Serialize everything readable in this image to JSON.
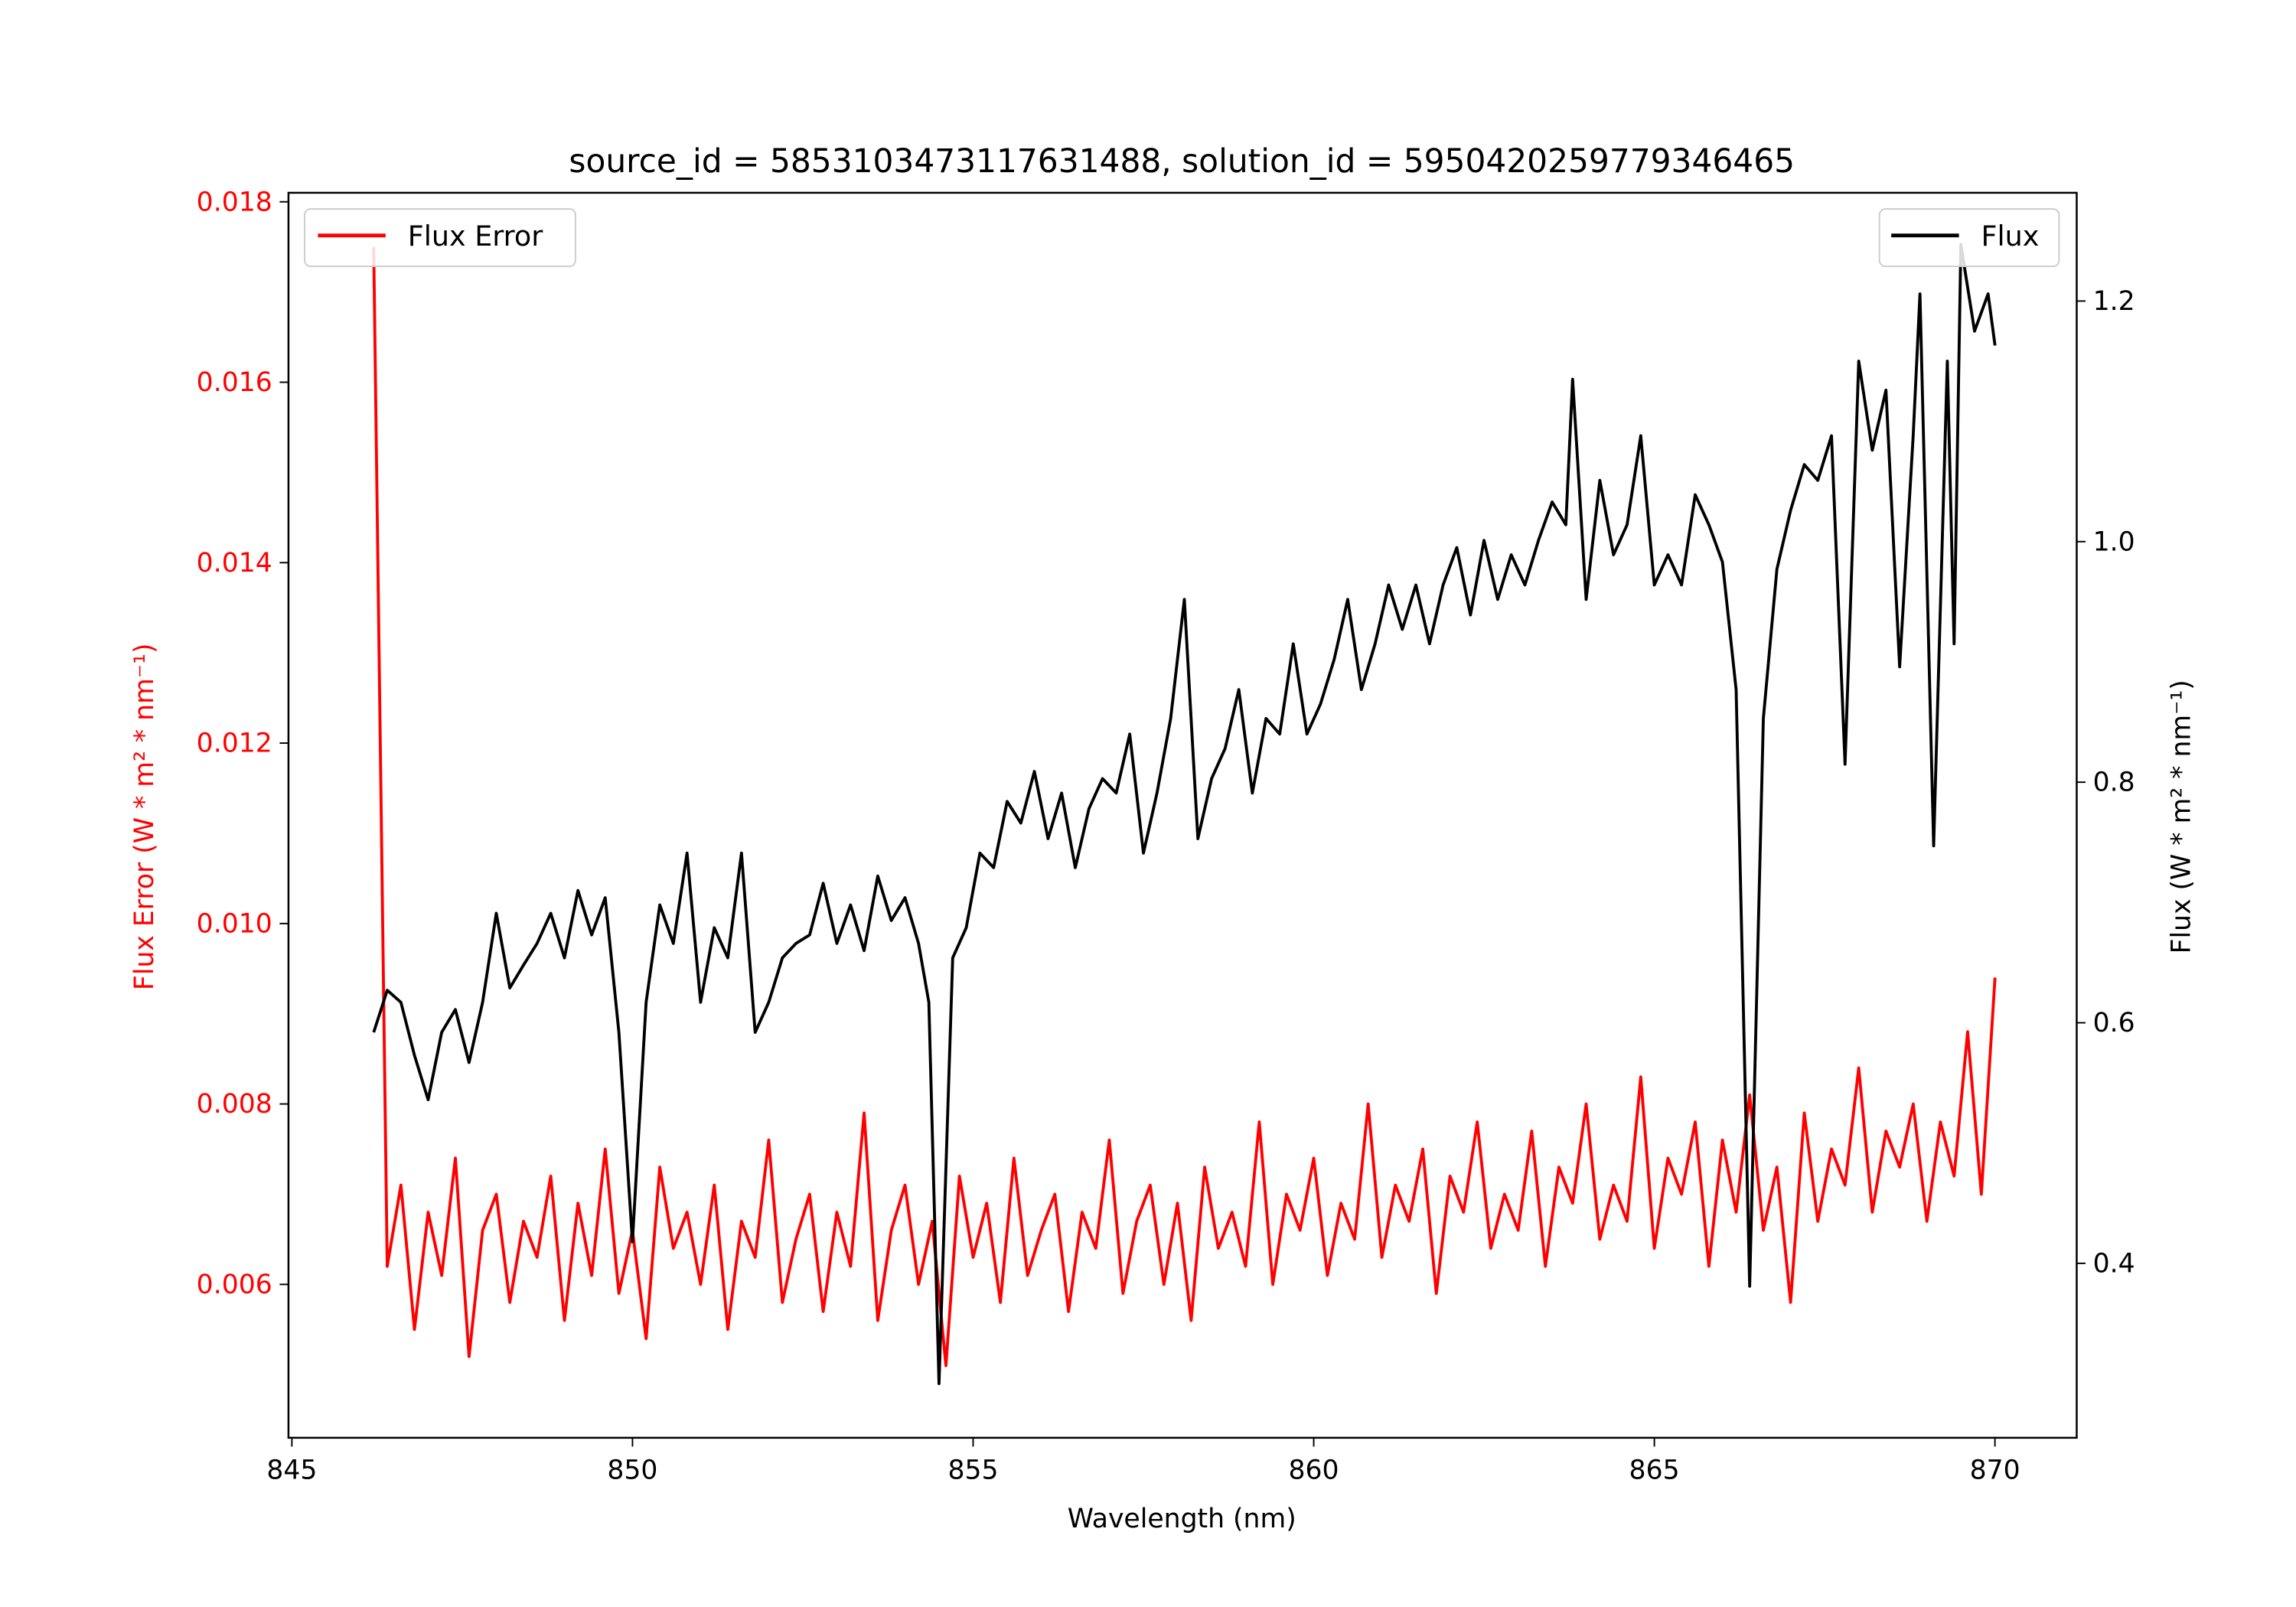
{
  "chart_data": {
    "type": "line",
    "title": "source_id = 5853103473117631488, solution_id = 5950420259779346465",
    "xlabel": "Wavelength (nm)",
    "ylabel_left": "Flux Error (W * m² * nm⁻¹)",
    "ylabel_right": "Flux (W * m² * nm⁻¹)",
    "xlim": [
      844.95,
      871.2
    ],
    "ylim_left": [
      0.0043,
      0.0181
    ],
    "ylim_right": [
      0.255,
      1.29
    ],
    "xticks": [
      "845",
      "850",
      "855",
      "860",
      "865",
      "870"
    ],
    "xtick_values": [
      845,
      850,
      855,
      860,
      865,
      870
    ],
    "yticks_left": [
      "0.006",
      "0.008",
      "0.010",
      "0.012",
      "0.014",
      "0.016",
      "0.018"
    ],
    "ytick_values_left": [
      0.006,
      0.008,
      0.01,
      0.012,
      0.014,
      0.016,
      0.018
    ],
    "yticks_right": [
      "0.4",
      "0.6",
      "0.8",
      "1.0",
      "1.2"
    ],
    "ytick_values_right": [
      0.4,
      0.6,
      0.8,
      1.0,
      1.2
    ],
    "grid": false,
    "legend_left": {
      "label": "Flux Error",
      "placement": "upper-left"
    },
    "legend_right": {
      "label": "Flux",
      "placement": "upper-right"
    },
    "colors": {
      "flux_error": "#ff0000",
      "flux": "#000000",
      "left_axis": "#ff0000"
    },
    "series": [
      {
        "name": "Flux Error",
        "axis": "left",
        "x_start": 846.2,
        "x_step": 0.2,
        "values": [
          0.0175,
          0.0062,
          0.0071,
          0.0055,
          0.0068,
          0.0061,
          0.0074,
          0.0052,
          0.0066,
          0.007,
          0.0058,
          0.0067,
          0.0063,
          0.0072,
          0.0056,
          0.0069,
          0.0061,
          0.0075,
          0.0059,
          0.0066,
          0.0054,
          0.0073,
          0.0064,
          0.0068,
          0.006,
          0.0071,
          0.0055,
          0.0067,
          0.0063,
          0.0076,
          0.0058,
          0.0065,
          0.007,
          0.0057,
          0.0068,
          0.0062,
          0.0079,
          0.0056,
          0.0066,
          0.0071,
          0.006,
          0.0067,
          0.0051,
          0.0072,
          0.0063,
          0.0069,
          0.0058,
          0.0074,
          0.0061,
          0.0066,
          0.007,
          0.0057,
          0.0068,
          0.0064,
          0.0076,
          0.0059,
          0.0067,
          0.0071,
          0.006,
          0.0069,
          0.0056,
          0.0073,
          0.0064,
          0.0068,
          0.0062,
          0.0078,
          0.006,
          0.007,
          0.0066,
          0.0074,
          0.0061,
          0.0069,
          0.0065,
          0.008,
          0.0063,
          0.0071,
          0.0067,
          0.0075,
          0.0059,
          0.0072,
          0.0068,
          0.0078,
          0.0064,
          0.007,
          0.0066,
          0.0077,
          0.0062,
          0.0073,
          0.0069,
          0.008,
          0.0065,
          0.0071,
          0.0067,
          0.0083,
          0.0064,
          0.0074,
          0.007,
          0.0078,
          0.0062,
          0.0076,
          0.0068,
          0.0081,
          0.0066,
          0.0073,
          0.0058,
          0.0079,
          0.0067,
          0.0075,
          0.0071,
          0.0084,
          0.0068,
          0.0077,
          0.0073,
          0.008,
          0.0067,
          0.0078,
          0.0072,
          0.0088,
          0.007,
          0.0094
        ]
      },
      {
        "name": "Flux",
        "axis": "right",
        "x": [
          846.2,
          846.4,
          846.6,
          846.8,
          847.0,
          847.2,
          847.4,
          847.6,
          847.8,
          848.0,
          848.2,
          848.4,
          848.6,
          848.8,
          849.0,
          849.2,
          849.4,
          849.6,
          849.8,
          850.0,
          850.2,
          850.4,
          850.6,
          850.8,
          851.0,
          851.2,
          851.4,
          851.6,
          851.8,
          852.0,
          852.2,
          852.4,
          852.6,
          852.8,
          853.0,
          853.2,
          853.4,
          853.6,
          853.8,
          854.0,
          854.2,
          854.35,
          854.5,
          854.7,
          854.9,
          855.1,
          855.3,
          855.5,
          855.7,
          855.9,
          856.1,
          856.3,
          856.5,
          856.7,
          856.9,
          857.1,
          857.3,
          857.5,
          857.7,
          857.9,
          858.1,
          858.3,
          858.5,
          858.7,
          858.9,
          859.1,
          859.3,
          859.5,
          859.7,
          859.9,
          860.1,
          860.3,
          860.5,
          860.7,
          860.9,
          861.1,
          861.3,
          861.5,
          861.7,
          861.9,
          862.1,
          862.3,
          862.5,
          862.7,
          862.9,
          863.1,
          863.3,
          863.5,
          863.7,
          863.8,
          864.0,
          864.2,
          864.4,
          864.6,
          864.8,
          865.0,
          865.2,
          865.4,
          865.6,
          865.8,
          866.0,
          866.2,
          866.4,
          866.6,
          866.8,
          867.0,
          867.2,
          867.4,
          867.6,
          867.8,
          868.0,
          868.2,
          868.4,
          868.6,
          868.8,
          868.9,
          869.1,
          869.3,
          869.4,
          869.5,
          869.7,
          869.9,
          870.0
        ],
        "values": [
          0.592,
          0.627,
          0.617,
          0.573,
          0.536,
          0.592,
          0.611,
          0.567,
          0.617,
          0.691,
          0.629,
          0.648,
          0.666,
          0.691,
          0.654,
          0.71,
          0.673,
          0.704,
          0.592,
          0.418,
          0.617,
          0.698,
          0.666,
          0.741,
          0.617,
          0.679,
          0.654,
          0.741,
          0.592,
          0.617,
          0.654,
          0.666,
          0.673,
          0.716,
          0.666,
          0.698,
          0.66,
          0.722,
          0.685,
          0.704,
          0.666,
          0.617,
          0.3,
          0.654,
          0.679,
          0.741,
          0.729,
          0.784,
          0.766,
          0.809,
          0.753,
          0.791,
          0.729,
          0.778,
          0.803,
          0.791,
          0.84,
          0.741,
          0.791,
          0.853,
          0.952,
          0.753,
          0.803,
          0.828,
          0.877,
          0.791,
          0.853,
          0.84,
          0.915,
          0.84,
          0.865,
          0.902,
          0.952,
          0.877,
          0.915,
          0.964,
          0.927,
          0.964,
          0.915,
          0.964,
          0.995,
          0.939,
          1.001,
          0.952,
          0.989,
          0.964,
          1.001,
          1.033,
          1.014,
          1.135,
          0.952,
          1.051,
          0.989,
          1.014,
          1.088,
          0.964,
          0.989,
          0.964,
          1.039,
          1.014,
          0.983,
          0.877,
          0.381,
          0.853,
          0.977,
          1.026,
          1.064,
          1.051,
          1.088,
          0.815,
          1.15,
          1.076,
          1.126,
          0.896,
          1.088,
          1.206,
          0.747,
          1.15,
          0.915,
          1.247,
          1.175,
          1.206,
          1.163
        ]
      }
    ]
  }
}
